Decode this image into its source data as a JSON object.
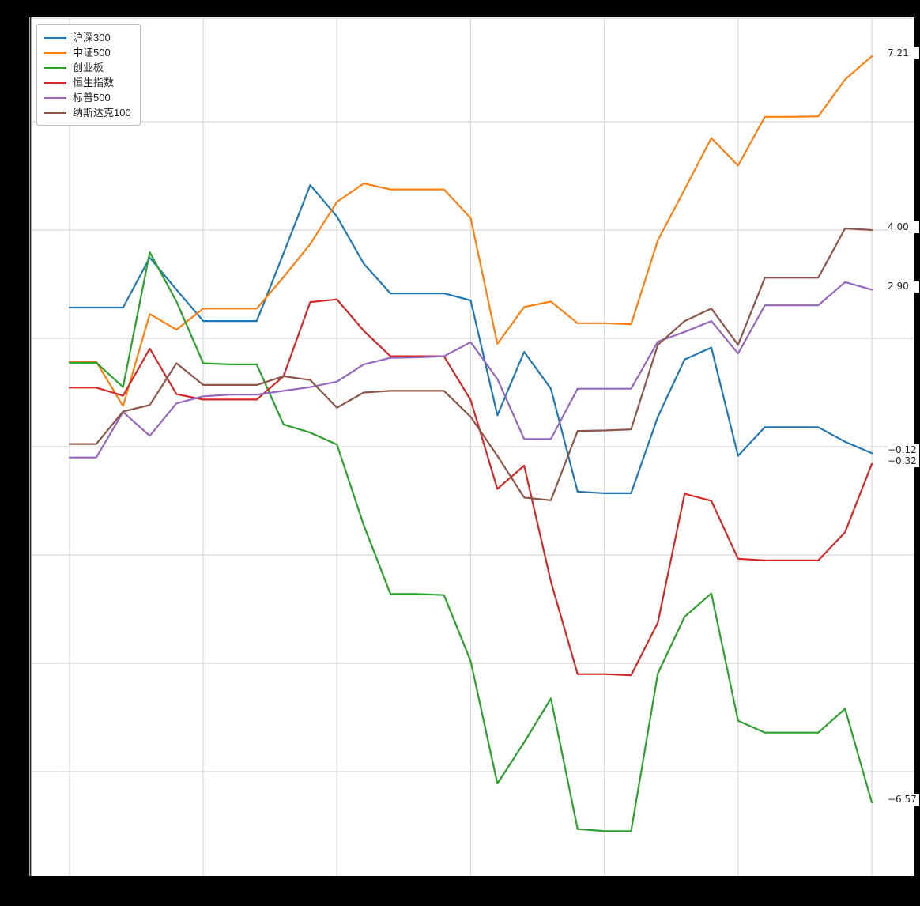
{
  "chart_data": {
    "type": "line",
    "title": "",
    "xlabel": "",
    "ylabel": "",
    "x_axis": {
      "tick_labels_visible": false,
      "num_points": 31,
      "gridline_point_indices": [
        0,
        5,
        10,
        15,
        20,
        25,
        30
      ]
    },
    "y_axis": {
      "tick_labels_visible": false,
      "gridline_values": [
        8,
        6,
        4,
        2,
        0,
        -2,
        -4,
        -6
      ],
      "ylim": [
        -7.9,
        7.9
      ]
    },
    "grid": true,
    "legend_position": "upper-left",
    "series": [
      {
        "name": "沪深300",
        "color": "#1f77b4",
        "end_label": "−0.12",
        "values": [
          2.57,
          2.57,
          2.57,
          3.49,
          2.9,
          2.32,
          2.32,
          2.32,
          3.57,
          4.83,
          4.25,
          3.38,
          2.83,
          2.83,
          2.83,
          2.7,
          0.58,
          1.75,
          1.07,
          -0.83,
          -0.86,
          -0.86,
          0.55,
          1.61,
          1.83,
          -0.17,
          0.36,
          0.36,
          0.36,
          0.09,
          -0.12
        ]
      },
      {
        "name": "中证500",
        "color": "#ff7f0e",
        "end_label": "7.21",
        "values": [
          1.57,
          1.57,
          0.75,
          2.45,
          2.16,
          2.55,
          2.55,
          2.55,
          3.13,
          3.74,
          4.52,
          4.86,
          4.75,
          4.75,
          4.75,
          4.22,
          1.9,
          2.58,
          2.68,
          2.28,
          2.28,
          2.26,
          3.81,
          4.75,
          5.7,
          5.19,
          6.09,
          6.09,
          6.1,
          6.78,
          7.21
        ]
      },
      {
        "name": "创业板",
        "color": "#2ca02c",
        "end_label": "−6.57",
        "values": [
          1.55,
          1.55,
          1.1,
          3.59,
          2.68,
          1.54,
          1.52,
          1.52,
          0.41,
          0.26,
          0.04,
          -1.45,
          -2.72,
          -2.72,
          -2.74,
          -3.96,
          -6.22,
          -5.46,
          -4.65,
          -7.06,
          -7.1,
          -7.1,
          -4.19,
          -3.14,
          -2.71,
          -5.06,
          -5.28,
          -5.28,
          -5.28,
          -4.84,
          -6.57
        ]
      },
      {
        "name": "恒生指数",
        "color": "#d62728",
        "end_label": "−0.32",
        "values": [
          1.09,
          1.09,
          0.94,
          1.81,
          0.97,
          0.87,
          0.87,
          0.87,
          1.3,
          2.67,
          2.72,
          2.14,
          1.67,
          1.67,
          1.67,
          0.86,
          -0.78,
          -0.35,
          -2.49,
          -4.2,
          -4.2,
          -4.22,
          -3.25,
          -0.87,
          -1.0,
          -2.07,
          -2.1,
          -2.1,
          -2.1,
          -1.58,
          -0.32
        ]
      },
      {
        "name": "标普500",
        "color": "#9467bd",
        "end_label": "2.90",
        "values": [
          -0.2,
          -0.2,
          0.64,
          0.2,
          0.8,
          0.93,
          0.96,
          0.96,
          1.03,
          1.1,
          1.2,
          1.52,
          1.64,
          1.65,
          1.67,
          1.93,
          1.25,
          0.14,
          0.14,
          1.07,
          1.07,
          1.07,
          1.94,
          2.12,
          2.32,
          1.72,
          2.61,
          2.61,
          2.61,
          3.04,
          2.9
        ]
      },
      {
        "name": "纳斯达克100",
        "color": "#8c564b",
        "end_label": "4.00",
        "values": [
          0.05,
          0.05,
          0.65,
          0.77,
          1.54,
          1.14,
          1.14,
          1.14,
          1.3,
          1.23,
          0.72,
          1.0,
          1.03,
          1.03,
          1.03,
          0.55,
          -0.17,
          -0.94,
          -0.99,
          0.29,
          0.3,
          0.32,
          1.88,
          2.32,
          2.55,
          1.88,
          3.12,
          3.12,
          3.12,
          4.03,
          4.0
        ]
      }
    ]
  },
  "colors": {
    "canvas_background": "#000000",
    "plot_background": "#ffffff",
    "gridline": "#d8d8d8",
    "axis_spine": "#2b2b2b",
    "annotation_text": "#262626"
  }
}
